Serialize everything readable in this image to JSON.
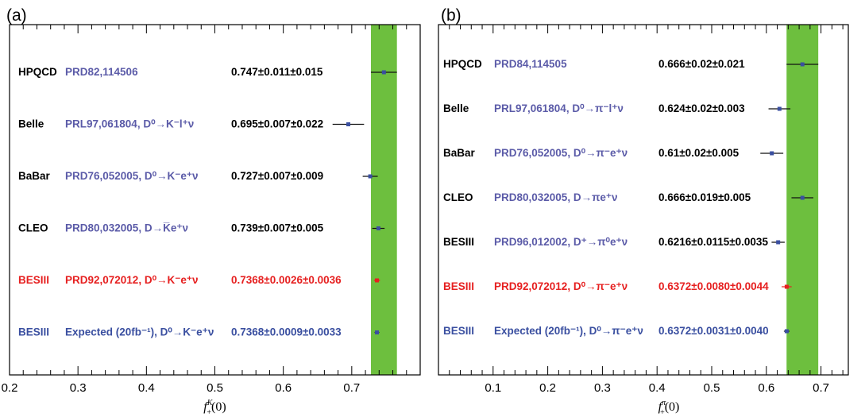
{
  "colors": {
    "band": "#6dbf3e",
    "default_text": "#000000",
    "ref_text": "#5b5ba8",
    "highlight": "#e62020",
    "expected": "#3a4fa0",
    "marker": "#3a4fa0"
  },
  "chart_data": [
    {
      "type": "forest",
      "panel_label": "(a)",
      "xlabel": "f₊ᴷ(0)",
      "xlabel_main": "f",
      "xlabel_sub": "+",
      "xlabel_sup": "K",
      "xlabel_tail": "(0)",
      "xlim": [
        0.2,
        0.8
      ],
      "ticks": [
        "0.2",
        "0.3",
        "0.4",
        "0.5",
        "0.6",
        "0.7"
      ],
      "tick_values": [
        0.2,
        0.3,
        0.4,
        0.5,
        0.6,
        0.7
      ],
      "band": [
        0.728,
        0.766
      ],
      "rows": [
        {
          "exp": "HPQCD",
          "ref": "PRD82,114506",
          "value_text": "0.747±0.011±0.015",
          "style": "default",
          "center": 0.747,
          "lo": 0.728,
          "hi": 0.766
        },
        {
          "exp": "Belle",
          "ref": "PRL97,061804, D⁰→K⁻l⁺ν",
          "value_text": "0.695±0.007±0.022",
          "style": "default",
          "center": 0.695,
          "lo": 0.672,
          "hi": 0.718
        },
        {
          "exp": "BaBar",
          "ref": "PRD76,052005, D⁰→K⁻e⁺ν",
          "value_text": "0.727±0.007±0.009",
          "style": "default",
          "center": 0.727,
          "lo": 0.716,
          "hi": 0.738
        },
        {
          "exp": "CLEO",
          "ref": "PRD80,032005, D→K̅e⁺ν",
          "value_text": "0.739±0.007±0.005",
          "style": "default",
          "center": 0.739,
          "lo": 0.73,
          "hi": 0.748
        },
        {
          "exp": "BESIII",
          "ref": "PRD92,072012, D⁰→K⁻e⁺ν",
          "value_text": "0.7368±0.0026±0.0036",
          "style": "highlight",
          "center": 0.7368,
          "lo": 0.7324,
          "hi": 0.7412
        },
        {
          "exp": "BESIII",
          "ref": "Expected (20fb⁻¹), D⁰→K⁻e⁺ν",
          "value_text": "0.7368±0.0009±0.0033",
          "style": "expected",
          "center": 0.7368,
          "lo": 0.7334,
          "hi": 0.7402
        }
      ]
    },
    {
      "type": "forest",
      "panel_label": "(b)",
      "xlabel": "f₊ᵖ(0)",
      "xlabel_main": "f",
      "xlabel_sub": "+",
      "xlabel_sup": "π",
      "xlabel_tail": "(0)",
      "xlim": [
        0.0,
        0.75
      ],
      "ticks": [
        "0.1",
        "0.2",
        "0.3",
        "0.4",
        "0.5",
        "0.6",
        "0.7"
      ],
      "tick_values": [
        0.1,
        0.2,
        0.3,
        0.4,
        0.5,
        0.6,
        0.7
      ],
      "band": [
        0.637,
        0.695
      ],
      "rows": [
        {
          "exp": "HPQCD",
          "ref": "PRD84,114505",
          "value_text": "0.666±0.02±0.021",
          "style": "default",
          "center": 0.666,
          "lo": 0.637,
          "hi": 0.695
        },
        {
          "exp": "Belle",
          "ref": "PRL97,061804, D⁰→π⁻l⁺ν",
          "value_text": "0.624±0.02±0.003",
          "style": "default",
          "center": 0.624,
          "lo": 0.604,
          "hi": 0.644
        },
        {
          "exp": "BaBar",
          "ref": "PRD76,052005, D⁰→π⁻e⁺ν",
          "value_text": "0.61±0.02±0.005",
          "style": "default",
          "center": 0.61,
          "lo": 0.589,
          "hi": 0.631
        },
        {
          "exp": "CLEO",
          "ref": "PRD80,032005, D→πe⁺ν",
          "value_text": "0.666±0.019±0.005",
          "style": "default",
          "center": 0.666,
          "lo": 0.646,
          "hi": 0.686
        },
        {
          "exp": "BESIII",
          "ref": "PRD96,012002, D⁺→π⁰e⁺ν",
          "value_text": "0.6216±0.0115±0.0035",
          "style": "default",
          "center": 0.6216,
          "lo": 0.6096,
          "hi": 0.6336
        },
        {
          "exp": "BESIII",
          "ref": "PRD92,072012, D⁰→π⁻e⁺ν",
          "value_text": "0.6372±0.0080±0.0044",
          "style": "highlight",
          "center": 0.6372,
          "lo": 0.628,
          "hi": 0.6463
        },
        {
          "exp": "BESIII",
          "ref": "Expected (20fb⁻¹), D⁰→π⁻e⁺ν",
          "value_text": "0.6372±0.0031±0.0040",
          "style": "expected",
          "center": 0.6372,
          "lo": 0.6321,
          "hi": 0.6423
        }
      ]
    }
  ]
}
